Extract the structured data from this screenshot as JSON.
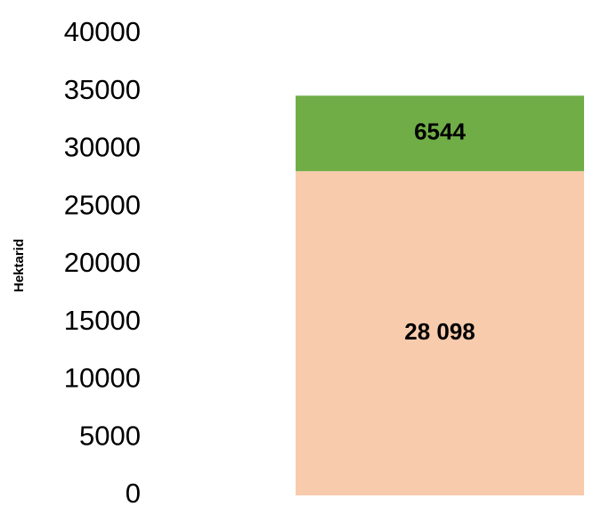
{
  "chart_data": {
    "type": "stacked_bar",
    "y_label": "Hektarid",
    "categories": [
      null
    ],
    "series": [
      {
        "color": "#f8cbad",
        "values": [
          28098
        ],
        "value_labels": [
          "28 098"
        ]
      },
      {
        "color": "#70ad47",
        "values": [
          6544
        ]
      }
    ],
    "ylim": [
      0,
      40000
    ],
    "yticks": [
      0,
      5000,
      10000,
      15000,
      20000,
      25000,
      30000,
      35000,
      40000
    ],
    "grid": false
  }
}
